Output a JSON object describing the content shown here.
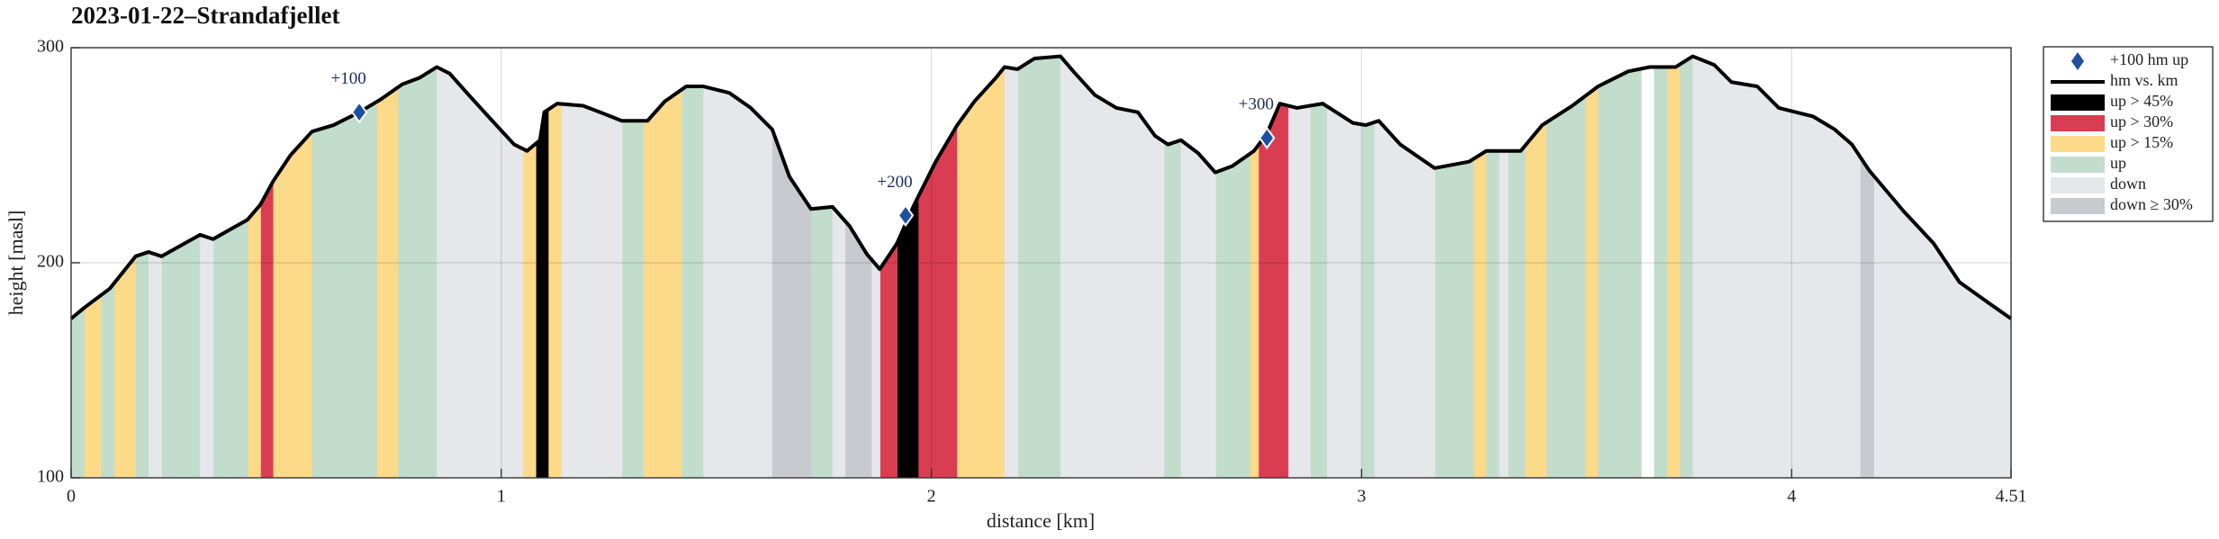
{
  "chart_data": {
    "type": "area-profile",
    "title": "2023-01-22–Strandafjellet",
    "x_label": "distance [km]",
    "y_label": "height [masl]",
    "xlim": [
      0,
      4.51
    ],
    "ylim": [
      100,
      300
    ],
    "xticks": [
      0,
      1,
      2,
      3,
      4,
      4.51
    ],
    "yticks": [
      100,
      200,
      300
    ],
    "grid": true,
    "legend": "outside-right",
    "markers": {
      "name": "+100 hm up",
      "color": "#1f4fa0",
      "x": [
        0.67,
        1.94,
        2.78
      ],
      "values": [
        270,
        222,
        258
      ],
      "labels": [
        "+100",
        "+200",
        "+300"
      ]
    },
    "profile": {
      "name": "hm vs. km",
      "color": "#000000",
      "x": [
        0,
        0.03,
        0.09,
        0.15,
        0.18,
        0.21,
        0.3,
        0.33,
        0.41,
        0.44,
        0.47,
        0.51,
        0.56,
        0.61,
        0.67,
        0.72,
        0.77,
        0.81,
        0.85,
        0.88,
        0.92,
        0.97,
        1.03,
        1.06,
        1.09,
        1.1,
        1.13,
        1.19,
        1.23,
        1.28,
        1.34,
        1.38,
        1.43,
        1.47,
        1.53,
        1.58,
        1.63,
        1.67,
        1.72,
        1.77,
        1.81,
        1.85,
        1.88,
        1.92,
        1.96,
        2.01,
        2.06,
        2.1,
        2.15,
        2.17,
        2.2,
        2.24,
        2.3,
        2.33,
        2.38,
        2.43,
        2.48,
        2.52,
        2.55,
        2.58,
        2.62,
        2.66,
        2.7,
        2.75,
        2.78,
        2.81,
        2.85,
        2.91,
        2.98,
        3.01,
        3.04,
        3.09,
        3.17,
        3.25,
        3.29,
        3.32,
        3.37,
        3.42,
        3.49,
        3.55,
        3.62,
        3.67,
        3.73,
        3.77,
        3.82,
        3.86,
        3.92,
        3.97,
        4.05,
        4.1,
        4.14,
        4.18,
        4.26,
        4.33,
        4.39,
        4.46,
        4.51
      ],
      "values": [
        174,
        179,
        188,
        203,
        205,
        203,
        213,
        211,
        220,
        227,
        238,
        250,
        261,
        264,
        270,
        276,
        283,
        286,
        291,
        288,
        279,
        268,
        255,
        252,
        257,
        270,
        274,
        273,
        270,
        266,
        266,
        275,
        282,
        282,
        279,
        272,
        262,
        240,
        225,
        226,
        217,
        204,
        197,
        209,
        227,
        247,
        264,
        275,
        286,
        291,
        290,
        295,
        296,
        289,
        278,
        272,
        270,
        259,
        255,
        257,
        251,
        242,
        245,
        252,
        260,
        274,
        272,
        274,
        265,
        264,
        266,
        255,
        244,
        247,
        252,
        252,
        252,
        264,
        273,
        282,
        289,
        291,
        291,
        296,
        292,
        284,
        282,
        272,
        268,
        262,
        255,
        243,
        224,
        209,
        191,
        181,
        174
      ]
    },
    "bands": [
      {
        "name": "up > 45%",
        "color": "#000000",
        "segments": [
          [
            1.08,
            1.11
          ],
          [
            1.92,
            1.97
          ]
        ]
      },
      {
        "name": "up > 30%",
        "color": "#d93d52",
        "segments": [
          [
            0.44,
            0.47
          ],
          [
            1.88,
            1.92
          ],
          [
            1.97,
            2.06
          ],
          [
            2.76,
            2.83
          ]
        ]
      },
      {
        "name": "up > 15%",
        "color": "#fdd98a",
        "segments": [
          [
            0.03,
            0.07
          ],
          [
            0.1,
            0.15
          ],
          [
            0.41,
            0.44
          ],
          [
            0.47,
            0.56
          ],
          [
            0.71,
            0.76
          ],
          [
            1.05,
            1.08
          ],
          [
            1.11,
            1.14
          ],
          [
            1.33,
            1.42
          ],
          [
            2.06,
            2.17
          ],
          [
            2.74,
            2.76
          ],
          [
            3.26,
            3.29
          ],
          [
            3.38,
            3.43
          ],
          [
            3.52,
            3.55
          ],
          [
            3.71,
            3.74
          ]
        ]
      },
      {
        "name": "up",
        "color": "#c2ddcb",
        "segments": [
          [
            0,
            0.03
          ],
          [
            0.07,
            0.1
          ],
          [
            0.15,
            0.18
          ],
          [
            0.21,
            0.3
          ],
          [
            0.33,
            0.41
          ],
          [
            0.56,
            0.71
          ],
          [
            0.76,
            0.85
          ],
          [
            1.28,
            1.33
          ],
          [
            1.42,
            1.47
          ],
          [
            1.72,
            1.77
          ],
          [
            2.2,
            2.3
          ],
          [
            2.54,
            2.58
          ],
          [
            2.66,
            2.74
          ],
          [
            2.88,
            2.92
          ],
          [
            3.0,
            3.03
          ],
          [
            3.17,
            3.26
          ],
          [
            3.29,
            3.32
          ],
          [
            3.34,
            3.38
          ],
          [
            3.43,
            3.52
          ],
          [
            3.55,
            3.65
          ],
          [
            3.68,
            3.71
          ],
          [
            3.74,
            3.77
          ]
        ]
      },
      {
        "name": "down",
        "color": "#e6e7eb",
        "segments": [
          [
            0.18,
            0.21
          ],
          [
            0.3,
            0.33
          ],
          [
            0.85,
            1.05
          ],
          [
            1.14,
            1.28
          ],
          [
            1.47,
            1.63
          ],
          [
            1.77,
            1.8
          ],
          [
            1.86,
            1.88
          ],
          [
            2.17,
            2.2
          ],
          [
            2.3,
            2.54
          ],
          [
            2.58,
            2.66
          ],
          [
            2.83,
            2.88
          ],
          [
            2.92,
            3.0
          ],
          [
            3.03,
            3.17
          ],
          [
            3.32,
            3.34
          ],
          [
            3.77,
            4.16
          ],
          [
            4.19,
            4.51
          ]
        ]
      },
      {
        "name": "down ≥ 30%",
        "color": "#c8cad0",
        "segments": [
          [
            1.63,
            1.72
          ],
          [
            1.8,
            1.86
          ],
          [
            4.16,
            4.19
          ]
        ]
      }
    ]
  }
}
